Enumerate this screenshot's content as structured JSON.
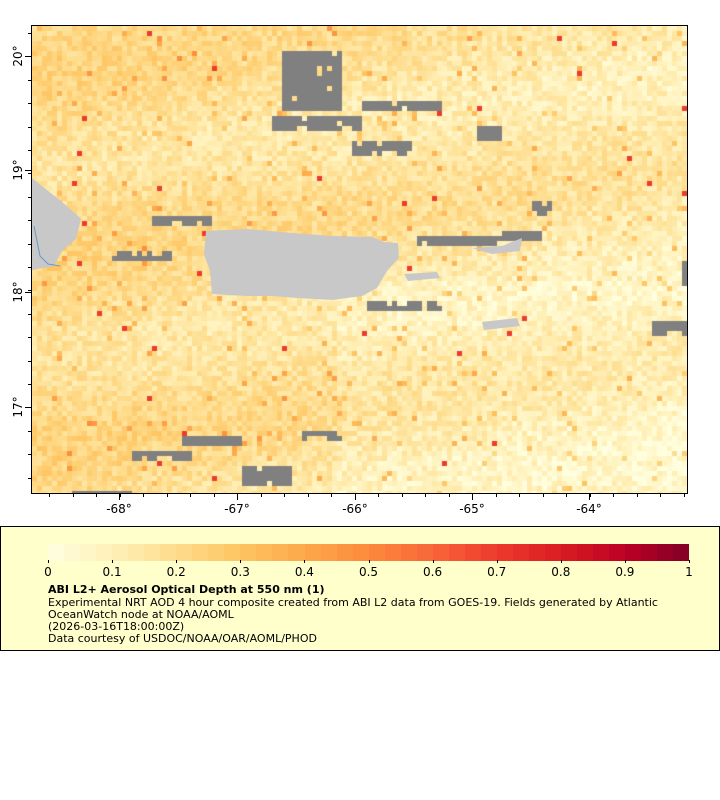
{
  "map": {
    "longitude_ticks": [
      "-68°",
      "-67°",
      "-66°",
      "-65°",
      "-64°"
    ],
    "latitude_ticks": [
      "20°",
      "19°",
      "18°",
      "17°"
    ],
    "lon_range": [
      -68.75,
      -63.16
    ],
    "lat_range": [
      16.26,
      20.26
    ],
    "land_color": "#c8c8c8",
    "missing_data_color": "#808080"
  },
  "legend": {
    "colorbar_labels": [
      "0",
      "0.1",
      "0.2",
      "0.3",
      "0.4",
      "0.5",
      "0.6",
      "0.7",
      "0.8",
      "0.9",
      "1"
    ],
    "colorbar_range": [
      0,
      1
    ],
    "colormap": [
      "#ffffe0",
      "#fff0b8",
      "#fedc8c",
      "#fec562",
      "#fda84a",
      "#fc8a3c",
      "#f9653a",
      "#ee3a2c",
      "#d91c22",
      "#bc0026",
      "#800026"
    ],
    "title": "ABI L2+ Aerosol Optical Depth at 550 nm (1)",
    "line1": "Experimental NRT AOD 4 hour composite created from ABI L2 data from GOES-19. Fields generated by Atlantic",
    "line2": "OceanWatch node at NOAA/AOML",
    "line3": "(2026-03-16T18:00:00Z)",
    "line4": "Data courtesy of USDOC/NOAA/OAR/AOML/PHOD"
  }
}
